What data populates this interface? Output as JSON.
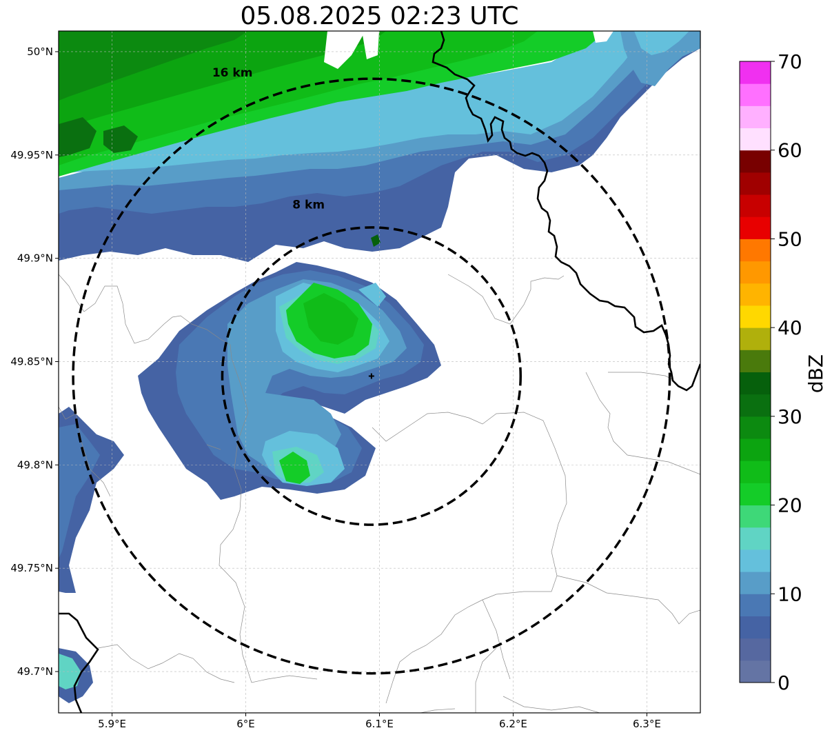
{
  "title": "05.08.2025 02:23 UTC",
  "map": {
    "lon_range": [
      5.86,
      6.34
    ],
    "lat_range": [
      49.68,
      50.01
    ],
    "x_ticks": [
      {
        "value": 5.9,
        "label": "5.9°E"
      },
      {
        "value": 6.0,
        "label": "6°E"
      },
      {
        "value": 6.1,
        "label": "6.1°E"
      },
      {
        "value": 6.2,
        "label": "6.2°E"
      },
      {
        "value": 6.3,
        "label": "6.3°E"
      }
    ],
    "y_ticks": [
      {
        "value": 50.0,
        "label": "50°N"
      },
      {
        "value": 49.95,
        "label": "49.95°N"
      },
      {
        "value": 49.9,
        "label": "49.9°N"
      },
      {
        "value": 49.85,
        "label": "49.85°N"
      },
      {
        "value": 49.8,
        "label": "49.8°N"
      },
      {
        "value": 49.75,
        "label": "49.75°N"
      },
      {
        "value": 49.7,
        "label": "49.7°N"
      }
    ],
    "radar_site": {
      "lon": 6.094,
      "lat": 49.843
    },
    "range_rings": [
      {
        "radius_km": 8,
        "label": "8 km",
        "label_lon": 6.047,
        "label_lat": 49.924
      },
      {
        "radius_km": 16,
        "label": "16 km",
        "label_lon": 5.99,
        "label_lat": 49.988
      }
    ]
  },
  "colorbar": {
    "label": "dBZ",
    "min": 0,
    "max": 70,
    "step": 2.5,
    "tick_labels": [
      "0",
      "10",
      "20",
      "30",
      "40",
      "50",
      "60",
      "70"
    ],
    "colors": [
      "#6474a4",
      "#5668a0",
      "#4563a4",
      "#4a78b4",
      "#589dc8",
      "#64c0dc",
      "#60d4c4",
      "#3ed878",
      "#14cc28",
      "#10bc18",
      "#0ca410",
      "#0c8a10",
      "#0a7010",
      "#06600c",
      "#4a7a0c",
      "#b0b00c",
      "#ffd800",
      "#ffb400",
      "#ff9800",
      "#ff7800",
      "#e80000",
      "#c80000",
      "#a00000",
      "#780000",
      "#ffe0ff",
      "#ffb0ff",
      "#ff70ff",
      "#f030f0"
    ]
  }
}
